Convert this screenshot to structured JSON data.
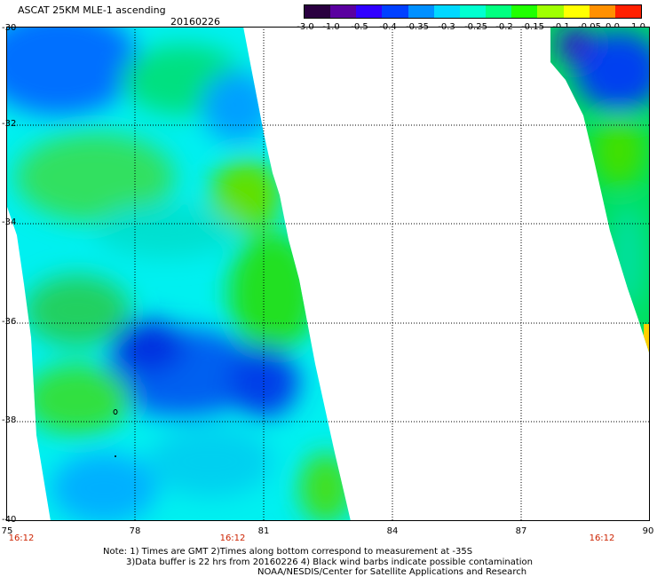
{
  "header": {
    "title": "ASCAT 25KM MLE-1 ascending",
    "date": "20160226"
  },
  "colorbar": {
    "ticks": [
      "-3.0",
      "-1.0",
      "-0.5",
      "-0.4",
      "-0.35",
      "-0.3",
      "-0.25",
      "-0.2",
      "-0.15",
      "-0.1",
      "-0.05",
      "0.0",
      "1.0"
    ],
    "colors": [
      "#2a0040",
      "#5a00a0",
      "#3000ff",
      "#0040ff",
      "#0090ff",
      "#00d8ff",
      "#00ffd0",
      "#00ff80",
      "#20ff00",
      "#a0ff00",
      "#ffff00",
      "#ff9000",
      "#ff2000"
    ]
  },
  "axes": {
    "y_labels": [
      "-30",
      "-32",
      "-34",
      "-36",
      "-38",
      "-40"
    ],
    "x_labels": [
      "75",
      "78",
      "81",
      "84",
      "87",
      "90"
    ]
  },
  "times": [
    "16:12",
    "16:12",
    "16:12"
  ],
  "notes": {
    "line1": "Note: 1) Times are GMT 2)Times along bottom correspond to measurement at -35S",
    "line2": "3)Data buffer is 22 hrs from 20160226 4) Black wind barbs indicate possible contamination",
    "line3": "NOAA/NESDIS/Center for Satellite Applications and Research"
  }
}
